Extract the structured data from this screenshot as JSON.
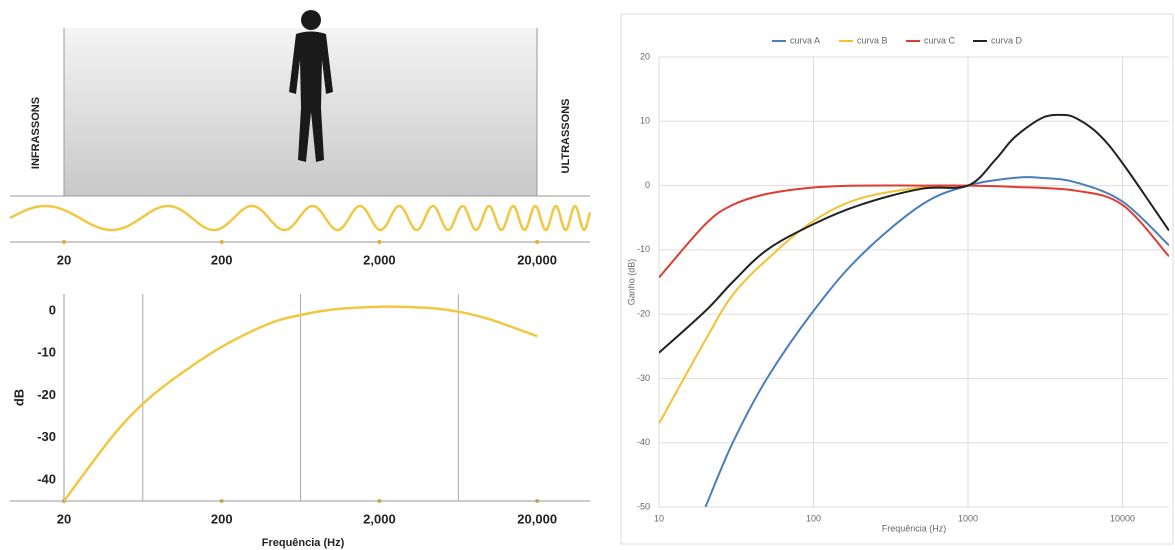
{
  "illustration": {
    "left_label": "INFRASSONS",
    "right_label": "ULTRASSONS",
    "axis_labels": [
      "20",
      "200",
      "2,000",
      "20,000"
    ]
  },
  "chart_data": [
    {
      "type": "line",
      "ylabel": "dB",
      "xlabel": "Frequência (Hz)",
      "log_x": true,
      "color": "#f0c843",
      "x": [
        20,
        40,
        63.2,
        100,
        200,
        400,
        632,
        1000,
        2000,
        4000,
        6325,
        10000,
        20000
      ],
      "values": [
        -45,
        -30,
        -22,
        -16,
        -8.5,
        -3,
        -1,
        0.3,
        1,
        0.7,
        -0.2,
        -2,
        -6
      ],
      "xlim": [
        20,
        42000
      ],
      "ylim": [
        -45,
        4
      ],
      "xticks": [
        20,
        200,
        {
          "value": 2000,
          "label": "2,000"
        },
        {
          "value": 20000,
          "label": "20,000"
        }
      ],
      "xgrid": [
        63.2,
        632,
        6325
      ],
      "yticks": [
        0,
        -10,
        -20,
        -30,
        -40
      ]
    },
    {
      "type": "line",
      "ylabel": "Ganho (dB)",
      "xlabel": "Frequência (Hz)",
      "log_x": true,
      "grid": true,
      "legend": "top",
      "xlim": [
        10,
        20000
      ],
      "ylim": [
        -50,
        20
      ],
      "xticks": [
        10,
        100,
        1000,
        10000
      ],
      "yticks": [
        20,
        10,
        0,
        -10,
        -20,
        -30,
        -40,
        -50
      ],
      "series": [
        {
          "name": "curva A",
          "color": "#4a7ebb",
          "x": [
            20,
            30,
            50,
            100,
            200,
            500,
            1000,
            2000,
            3000,
            5000,
            10000,
            20000
          ],
          "values": [
            -50,
            -40,
            -30,
            -19.5,
            -11,
            -3,
            0,
            1.2,
            1.2,
            0.5,
            -2.5,
            -9.3
          ]
        },
        {
          "name": "curva B",
          "color": "#f2c230",
          "x": [
            10,
            20,
            30,
            50,
            100,
            200,
            500,
            1000
          ],
          "values": [
            -37,
            -24,
            -17,
            -11.5,
            -5.5,
            -2,
            -0.3,
            0
          ]
        },
        {
          "name": "curva C",
          "color": "#e03c31",
          "x": [
            10,
            20,
            30,
            50,
            100,
            200,
            500,
            1000,
            2000,
            5000,
            10000,
            20000
          ],
          "values": [
            -14.3,
            -6,
            -3,
            -1.3,
            -0.3,
            0,
            0,
            0,
            -0.2,
            -0.8,
            -3,
            -11
          ]
        },
        {
          "name": "curva D",
          "color": "#222222",
          "x": [
            10,
            20,
            30,
            50,
            100,
            200,
            500,
            1000,
            1500,
            2000,
            3000,
            4000,
            5000,
            7000,
            10000,
            20000
          ],
          "values": [
            -26,
            -19.5,
            -15,
            -10,
            -6,
            -3,
            -0.5,
            0,
            4,
            7.5,
            10.5,
            11,
            10.5,
            8,
            3.5,
            -7
          ]
        }
      ]
    }
  ]
}
